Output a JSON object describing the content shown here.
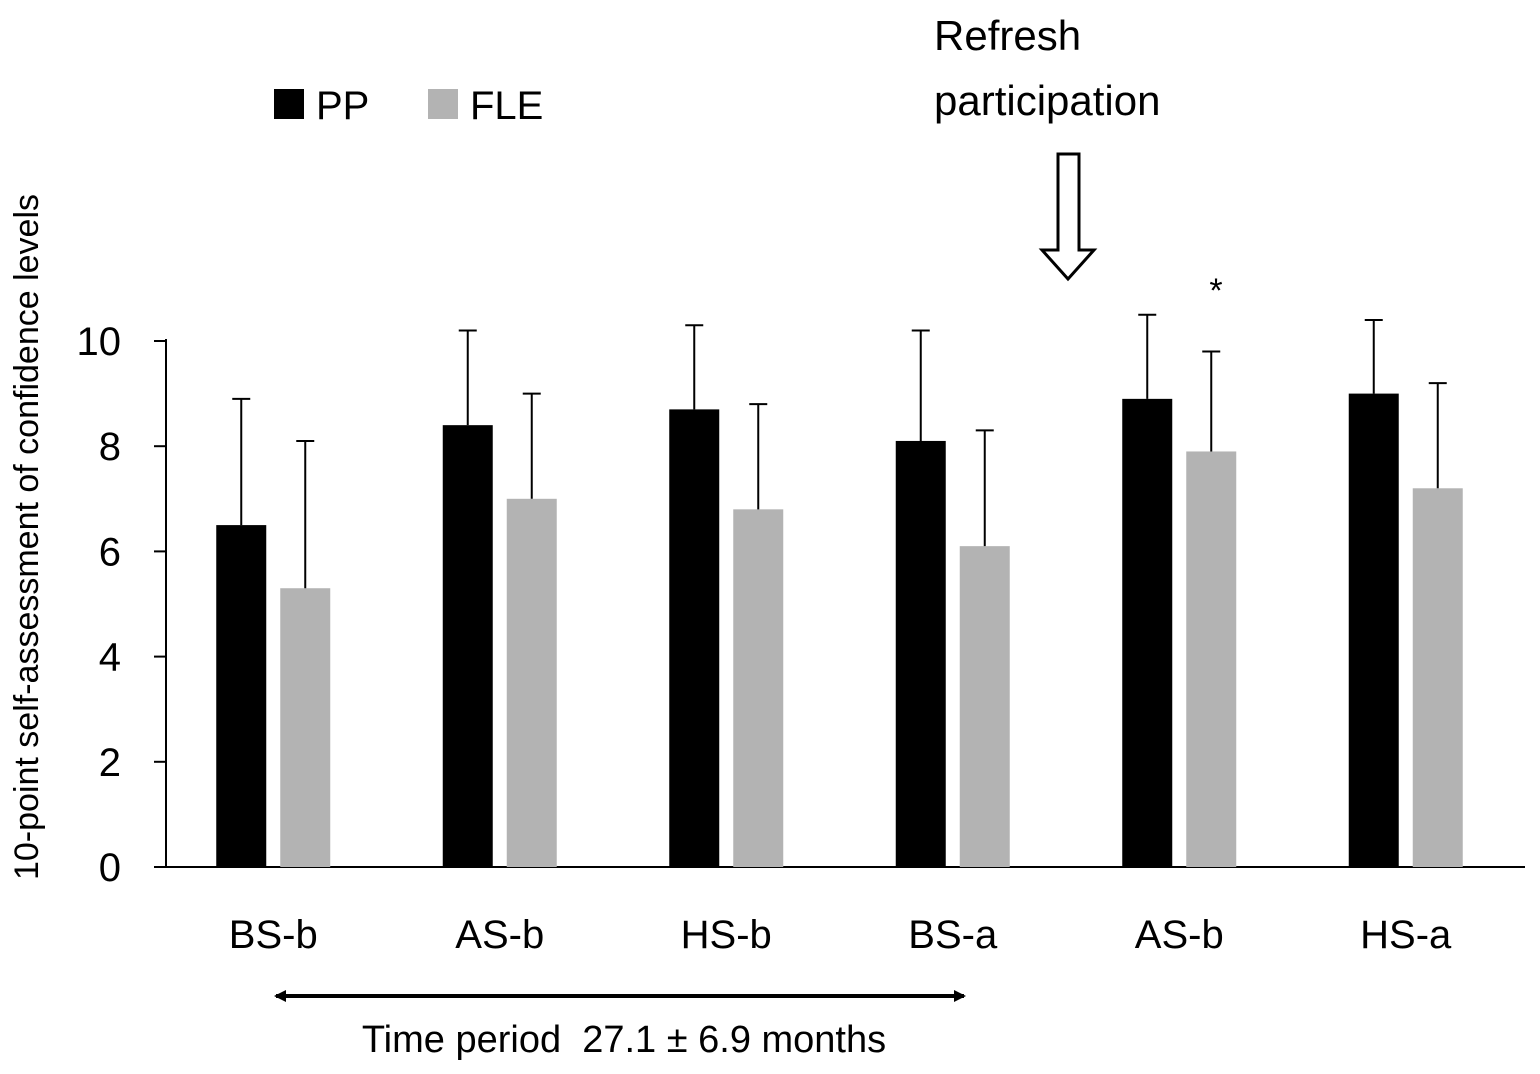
{
  "chart_data": {
    "type": "bar",
    "title": "",
    "xlabel": "",
    "ylabel": "10-point self-assessment of confidence levels",
    "ylim": [
      0,
      10
    ],
    "yticks": [
      0,
      2,
      4,
      6,
      8,
      10
    ],
    "grid": false,
    "legend_position": "top-left",
    "categories": [
      "BS-b",
      "AS-b",
      "HS-b",
      "BS-a",
      "AS-b",
      "HS-a"
    ],
    "series": [
      {
        "name": "PP",
        "color": "#000000",
        "values": [
          6.5,
          8.4,
          8.7,
          8.1,
          8.9,
          9.0
        ],
        "errors": [
          2.4,
          1.8,
          1.6,
          2.1,
          1.6,
          1.4
        ]
      },
      {
        "name": "FLE",
        "color": "#b3b3b3",
        "values": [
          5.3,
          7.0,
          6.8,
          6.1,
          7.9,
          7.2
        ],
        "errors": [
          2.8,
          2.0,
          2.0,
          2.2,
          1.9,
          2.0
        ]
      }
    ],
    "annotations": {
      "refresh": "Refresh participation",
      "refresh_line1": "Refresh",
      "refresh_line2": "participation",
      "significance_marker": "*",
      "time_period": "Time period  27.1 ± 6.9 months"
    }
  }
}
